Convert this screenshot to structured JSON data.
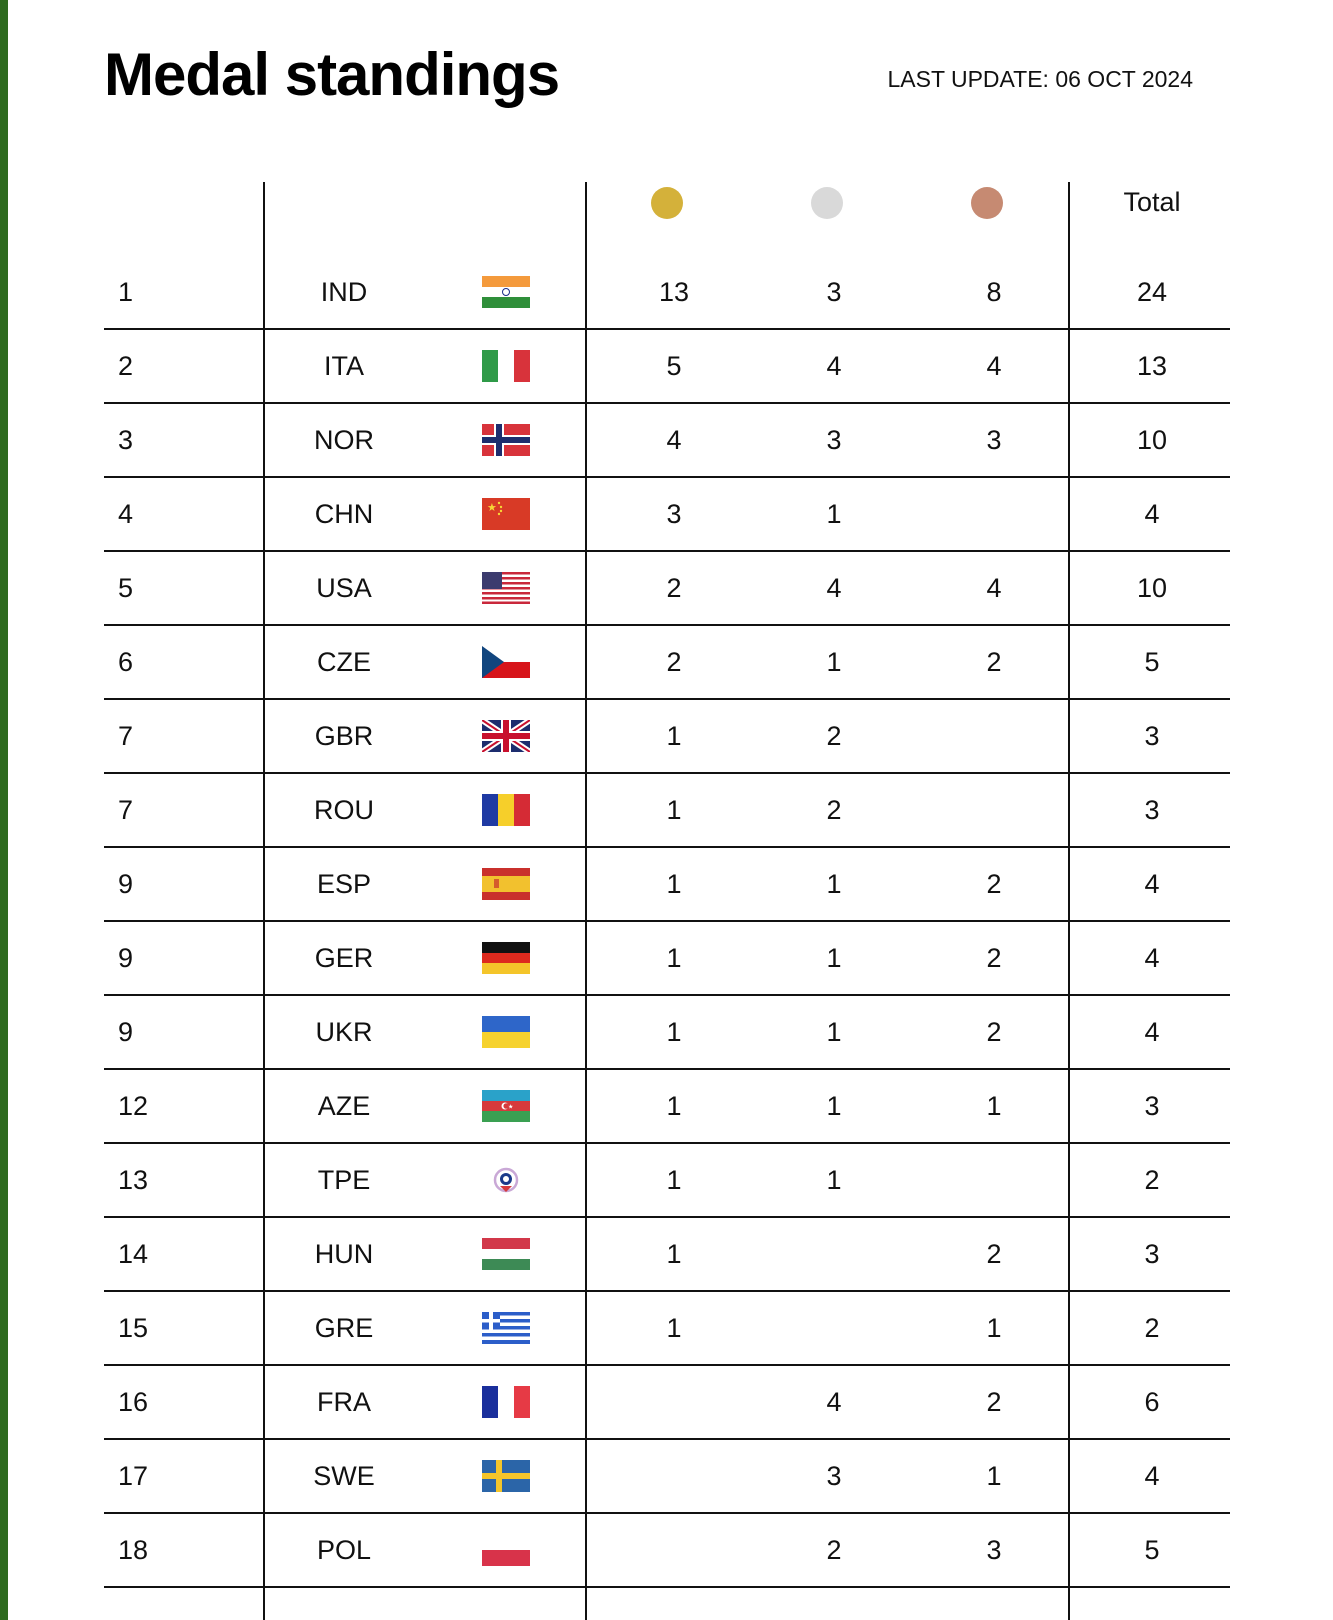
{
  "title": "Medal standings",
  "last_update": "LAST UPDATE: 06 OCT 2024",
  "header": {
    "medals": [
      {
        "name": "gold-medal-icon",
        "color": "#d4b13a"
      },
      {
        "name": "silver-medal-icon",
        "color": "#d9d9d9"
      },
      {
        "name": "bronze-medal-icon",
        "color": "#c68a72"
      }
    ],
    "total_label": "Total"
  },
  "rows": [
    {
      "rank": "1",
      "code": "IND",
      "flag": "ind-flag-icon",
      "gold": "13",
      "silver": "3",
      "bronze": "8",
      "total": "24"
    },
    {
      "rank": "2",
      "code": "ITA",
      "flag": "ita-flag-icon",
      "gold": "5",
      "silver": "4",
      "bronze": "4",
      "total": "13"
    },
    {
      "rank": "3",
      "code": "NOR",
      "flag": "nor-flag-icon",
      "gold": "4",
      "silver": "3",
      "bronze": "3",
      "total": "10"
    },
    {
      "rank": "4",
      "code": "CHN",
      "flag": "chn-flag-icon",
      "gold": "3",
      "silver": "1",
      "bronze": "",
      "total": "4"
    },
    {
      "rank": "5",
      "code": "USA",
      "flag": "usa-flag-icon",
      "gold": "2",
      "silver": "4",
      "bronze": "4",
      "total": "10"
    },
    {
      "rank": "6",
      "code": "CZE",
      "flag": "cze-flag-icon",
      "gold": "2",
      "silver": "1",
      "bronze": "2",
      "total": "5"
    },
    {
      "rank": "7",
      "code": "GBR",
      "flag": "gbr-flag-icon",
      "gold": "1",
      "silver": "2",
      "bronze": "",
      "total": "3"
    },
    {
      "rank": "7",
      "code": "ROU",
      "flag": "rou-flag-icon",
      "gold": "1",
      "silver": "2",
      "bronze": "",
      "total": "3"
    },
    {
      "rank": "9",
      "code": "ESP",
      "flag": "esp-flag-icon",
      "gold": "1",
      "silver": "1",
      "bronze": "2",
      "total": "4"
    },
    {
      "rank": "9",
      "code": "GER",
      "flag": "ger-flag-icon",
      "gold": "1",
      "silver": "1",
      "bronze": "2",
      "total": "4"
    },
    {
      "rank": "9",
      "code": "UKR",
      "flag": "ukr-flag-icon",
      "gold": "1",
      "silver": "1",
      "bronze": "2",
      "total": "4"
    },
    {
      "rank": "12",
      "code": "AZE",
      "flag": "aze-flag-icon",
      "gold": "1",
      "silver": "1",
      "bronze": "1",
      "total": "3"
    },
    {
      "rank": "13",
      "code": "TPE",
      "flag": "tpe-flag-icon",
      "gold": "1",
      "silver": "1",
      "bronze": "",
      "total": "2"
    },
    {
      "rank": "14",
      "code": "HUN",
      "flag": "hun-flag-icon",
      "gold": "1",
      "silver": "",
      "bronze": "2",
      "total": "3"
    },
    {
      "rank": "15",
      "code": "GRE",
      "flag": "gre-flag-icon",
      "gold": "1",
      "silver": "",
      "bronze": "1",
      "total": "2"
    },
    {
      "rank": "16",
      "code": "FRA",
      "flag": "fra-flag-icon",
      "gold": "",
      "silver": "4",
      "bronze": "2",
      "total": "6"
    },
    {
      "rank": "17",
      "code": "SWE",
      "flag": "swe-flag-icon",
      "gold": "",
      "silver": "3",
      "bronze": "1",
      "total": "4"
    },
    {
      "rank": "18",
      "code": "POL",
      "flag": "pol-flag-icon",
      "gold": "",
      "silver": "2",
      "bronze": "3",
      "total": "5"
    }
  ]
}
